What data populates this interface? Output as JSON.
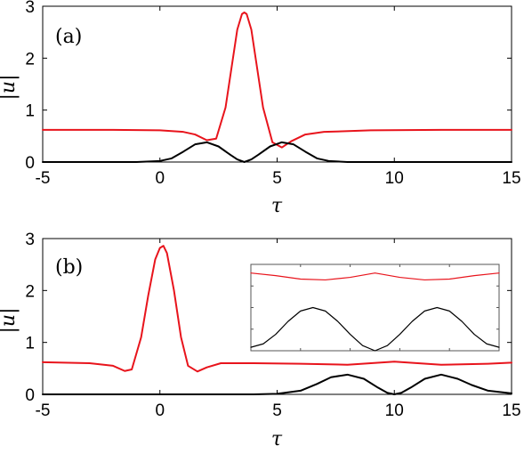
{
  "chart_data": [
    {
      "type": "line",
      "panel_label": "(a)",
      "xlabel": "τ",
      "ylabel": "|u|",
      "xlim": [
        -5,
        15
      ],
      "ylim": [
        0,
        3
      ],
      "xticks": [
        "-5",
        "0",
        "5",
        "10",
        "15"
      ],
      "yticks": [
        "0",
        "1",
        "2",
        "3"
      ],
      "grid": false,
      "colors": {
        "red": "#e8141c",
        "black": "#000000"
      },
      "series": [
        {
          "color": "#e8141c",
          "x": [
            -5,
            -2,
            0,
            1,
            1.5,
            2,
            2.4,
            2.8,
            3.1,
            3.3,
            3.5,
            3.6,
            3.7,
            3.9,
            4.1,
            4.4,
            4.8,
            5.2,
            5.6,
            6.2,
            7,
            9,
            12,
            15
          ],
          "y": [
            0.62,
            0.62,
            0.61,
            0.58,
            0.53,
            0.42,
            0.45,
            1.05,
            1.95,
            2.55,
            2.85,
            2.88,
            2.85,
            2.55,
            1.95,
            1.05,
            0.38,
            0.28,
            0.4,
            0.53,
            0.58,
            0.61,
            0.62,
            0.62
          ]
        },
        {
          "color": "#000000",
          "x": [
            -5,
            -1,
            0,
            0.5,
            1,
            1.5,
            2,
            2.5,
            3,
            3.3,
            3.6,
            3.9,
            4.2,
            4.7,
            5.2,
            5.7,
            6.2,
            6.7,
            7.2,
            8,
            10,
            15
          ],
          "y": [
            0,
            0,
            0.02,
            0.07,
            0.2,
            0.34,
            0.38,
            0.3,
            0.14,
            0.05,
            0,
            0.05,
            0.14,
            0.3,
            0.38,
            0.34,
            0.2,
            0.07,
            0.02,
            0,
            0,
            0
          ]
        }
      ]
    },
    {
      "type": "line",
      "panel_label": "(b)",
      "xlabel": "τ",
      "ylabel": "|u|",
      "xlim": [
        -5,
        15
      ],
      "ylim": [
        0,
        3
      ],
      "xticks": [
        "-5",
        "0",
        "5",
        "10",
        "15"
      ],
      "yticks": [
        "0",
        "1",
        "2",
        "3"
      ],
      "grid": false,
      "colors": {
        "red": "#e8141c",
        "black": "#000000"
      },
      "series": [
        {
          "color": "#e8141c",
          "x": [
            -5,
            -3,
            -2,
            -1.5,
            -1.2,
            -0.8,
            -0.5,
            -0.2,
            0,
            0.15,
            0.3,
            0.6,
            0.9,
            1.2,
            1.6,
            2,
            2.6,
            4,
            6,
            8,
            10,
            11,
            12,
            14,
            15
          ],
          "y": [
            0.62,
            0.6,
            0.55,
            0.45,
            0.48,
            1.1,
            1.9,
            2.6,
            2.82,
            2.86,
            2.72,
            2.0,
            1.1,
            0.55,
            0.44,
            0.52,
            0.6,
            0.6,
            0.59,
            0.57,
            0.63,
            0.6,
            0.57,
            0.59,
            0.61
          ]
        },
        {
          "color": "#000000",
          "x": [
            -5,
            4,
            5,
            6,
            6.7,
            7.3,
            8,
            8.7,
            9.3,
            9.7,
            10,
            10.3,
            10.7,
            11.3,
            12,
            12.7,
            13.3,
            14,
            15
          ],
          "y": [
            0,
            0,
            0.01,
            0.07,
            0.2,
            0.33,
            0.38,
            0.3,
            0.13,
            0.03,
            0,
            0.03,
            0.13,
            0.3,
            0.38,
            0.3,
            0.18,
            0.07,
            0.02
          ]
        }
      ]
    },
    {
      "type": "line",
      "role": "inset",
      "series": [
        {
          "color": "#e8141c",
          "x": [
            0,
            0.1,
            0.2,
            0.3,
            0.4,
            0.5,
            0.6,
            0.7,
            0.8,
            0.9,
            1
          ],
          "y": [
            0.9,
            0.87,
            0.83,
            0.82,
            0.85,
            0.9,
            0.85,
            0.82,
            0.83,
            0.87,
            0.9
          ]
        },
        {
          "color": "#000000",
          "x": [
            0,
            0.05,
            0.1,
            0.15,
            0.2,
            0.25,
            0.3,
            0.35,
            0.4,
            0.45,
            0.5,
            0.55,
            0.6,
            0.65,
            0.7,
            0.75,
            0.8,
            0.85,
            0.9,
            0.95,
            1
          ],
          "y": [
            0.04,
            0.08,
            0.19,
            0.34,
            0.46,
            0.5,
            0.46,
            0.34,
            0.19,
            0.06,
            0,
            0.06,
            0.19,
            0.34,
            0.46,
            0.5,
            0.46,
            0.34,
            0.19,
            0.08,
            0.04
          ]
        }
      ]
    }
  ]
}
